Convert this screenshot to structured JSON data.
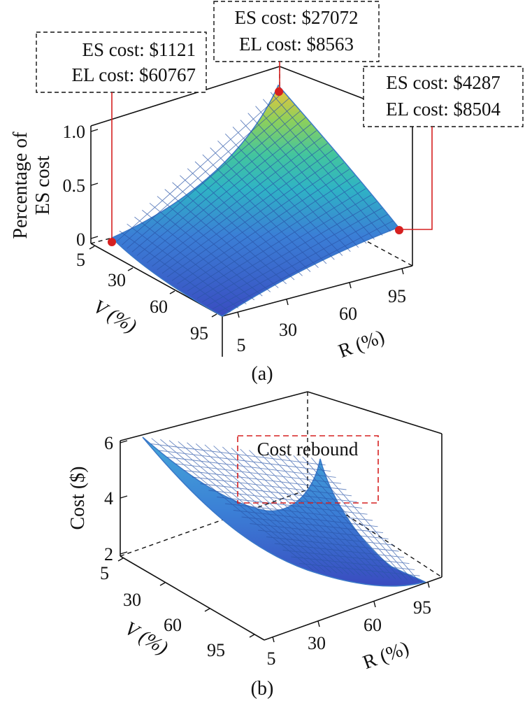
{
  "chart_data": [
    {
      "panel": "(a)",
      "type": "surface",
      "zlabel": [
        "Percentage of",
        "ES cost"
      ],
      "xlabel": "R (%)",
      "ylabel": "V (%)",
      "x_ticks": [
        "5",
        "30",
        "60",
        "95"
      ],
      "y_ticks": [
        "5",
        "30",
        "60",
        "95"
      ],
      "z_ticks": [
        "0",
        "0.5",
        "1.0"
      ],
      "x_range": [
        5,
        95
      ],
      "y_range": [
        5,
        95
      ],
      "z_range": [
        0,
        1.0
      ],
      "colormap": [
        "#3a4cc0",
        "#3b7fd6",
        "#2fb3c5",
        "#43c59e",
        "#8fd05a",
        "#f2c13a"
      ],
      "annotations": [
        {
          "R": 5,
          "V": 5,
          "es": "ES cost: $1121",
          "el": "EL cost: $60767"
        },
        {
          "R": 95,
          "V": 5,
          "es": "ES cost: $27072",
          "el": "EL cost: $8563"
        },
        {
          "R": 95,
          "V": 95,
          "es": "ES cost: $4287",
          "el": "EL cost: $8504"
        }
      ],
      "surface_samples": [
        {
          "R": 5,
          "V": 5,
          "z": 0.0
        },
        {
          "R": 95,
          "V": 5,
          "z": 1.0
        },
        {
          "R": 95,
          "V": 95,
          "z": 0.0
        },
        {
          "R": 5,
          "V": 95,
          "z": 0.0
        }
      ]
    },
    {
      "panel": "(b)",
      "type": "surface",
      "zlabel": "Cost ($)",
      "xlabel": "R (%)",
      "ylabel": "V (%)",
      "x_ticks": [
        "5",
        "30",
        "60",
        "95"
      ],
      "y_ticks": [
        "5",
        "30",
        "60",
        "95"
      ],
      "z_ticks": [
        "2",
        "4",
        "6"
      ],
      "x_range": [
        5,
        95
      ],
      "y_range": [
        5,
        95
      ],
      "z_range": [
        2,
        6
      ],
      "highlight": "Cost rebound",
      "surface_samples": [
        {
          "R": 5,
          "V": 5,
          "z": 6.0
        },
        {
          "R": 95,
          "V": 5,
          "z": 5.0
        },
        {
          "R": 95,
          "V": 95,
          "z": 2.1
        },
        {
          "R": 5,
          "V": 95,
          "z": 3.8
        }
      ]
    }
  ]
}
